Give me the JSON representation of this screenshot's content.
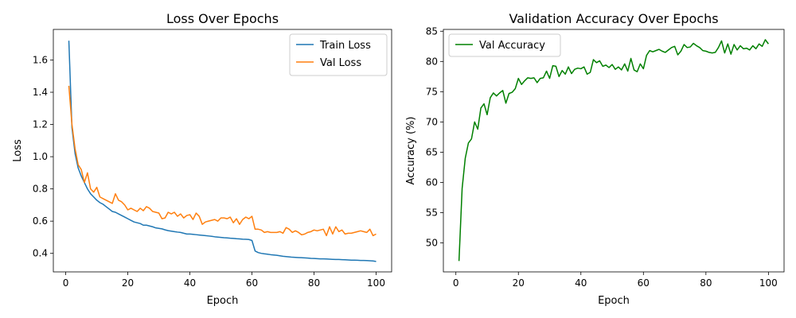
{
  "chart_data": [
    {
      "type": "line",
      "title": "Loss Over Epochs",
      "xlabel": "Epoch",
      "ylabel": "Loss",
      "xlim": [
        -4,
        105
      ],
      "ylim": [
        0.285,
        1.79
      ],
      "xticks": [
        0,
        20,
        40,
        60,
        80,
        100
      ],
      "yticks": [
        0.4,
        0.6,
        0.8,
        1.0,
        1.2,
        1.4,
        1.6
      ],
      "ytick_labels": [
        "0.4",
        "0.6",
        "0.8",
        "1.0",
        "1.2",
        "1.4",
        "1.6"
      ],
      "legend_position": "top-right",
      "grid": false,
      "series": [
        {
          "name": "Train Loss",
          "color": "#1f77b4",
          "x": [
            1,
            2,
            3,
            4,
            5,
            6,
            7,
            8,
            9,
            10,
            11,
            12,
            13,
            14,
            15,
            16,
            17,
            18,
            19,
            20,
            21,
            22,
            23,
            24,
            25,
            26,
            27,
            28,
            29,
            30,
            31,
            32,
            33,
            34,
            35,
            36,
            37,
            38,
            39,
            40,
            41,
            42,
            43,
            44,
            45,
            46,
            47,
            48,
            49,
            50,
            51,
            52,
            53,
            54,
            55,
            56,
            57,
            58,
            59,
            60,
            61,
            62,
            63,
            64,
            65,
            66,
            67,
            68,
            69,
            70,
            71,
            72,
            73,
            74,
            75,
            76,
            77,
            78,
            79,
            80,
            81,
            82,
            83,
            84,
            85,
            86,
            87,
            88,
            89,
            90,
            91,
            92,
            93,
            94,
            95,
            96,
            97,
            98,
            99,
            100
          ],
          "values": [
            1.72,
            1.18,
            1.02,
            0.93,
            0.88,
            0.84,
            0.8,
            0.77,
            0.75,
            0.73,
            0.715,
            0.705,
            0.69,
            0.675,
            0.66,
            0.655,
            0.645,
            0.635,
            0.625,
            0.615,
            0.605,
            0.595,
            0.59,
            0.585,
            0.575,
            0.575,
            0.57,
            0.565,
            0.558,
            0.555,
            0.552,
            0.546,
            0.541,
            0.538,
            0.535,
            0.532,
            0.53,
            0.525,
            0.52,
            0.52,
            0.518,
            0.516,
            0.514,
            0.512,
            0.51,
            0.508,
            0.506,
            0.503,
            0.501,
            0.499,
            0.497,
            0.496,
            0.494,
            0.493,
            0.491,
            0.49,
            0.488,
            0.487,
            0.486,
            0.48,
            0.415,
            0.405,
            0.4,
            0.397,
            0.395,
            0.392,
            0.39,
            0.388,
            0.385,
            0.382,
            0.38,
            0.378,
            0.376,
            0.375,
            0.374,
            0.373,
            0.372,
            0.371,
            0.369,
            0.368,
            0.367,
            0.366,
            0.366,
            0.365,
            0.364,
            0.363,
            0.362,
            0.362,
            0.361,
            0.36,
            0.359,
            0.358,
            0.358,
            0.357,
            0.356,
            0.356,
            0.355,
            0.354,
            0.353,
            0.35
          ]
        },
        {
          "name": "Val Loss",
          "color": "#ff7f0e",
          "x": [
            1,
            2,
            3,
            4,
            5,
            6,
            7,
            8,
            9,
            10,
            11,
            12,
            13,
            14,
            15,
            16,
            17,
            18,
            19,
            20,
            21,
            22,
            23,
            24,
            25,
            26,
            27,
            28,
            29,
            30,
            31,
            32,
            33,
            34,
            35,
            36,
            37,
            38,
            39,
            40,
            41,
            42,
            43,
            44,
            45,
            46,
            47,
            48,
            49,
            50,
            51,
            52,
            53,
            54,
            55,
            56,
            57,
            58,
            59,
            60,
            61,
            62,
            63,
            64,
            65,
            66,
            67,
            68,
            69,
            70,
            71,
            72,
            73,
            74,
            75,
            76,
            77,
            78,
            79,
            80,
            81,
            82,
            83,
            84,
            85,
            86,
            87,
            88,
            89,
            90,
            91,
            92,
            93,
            94,
            95,
            96,
            97,
            98,
            99,
            100
          ],
          "values": [
            1.44,
            1.2,
            1.05,
            0.95,
            0.92,
            0.84,
            0.9,
            0.8,
            0.78,
            0.81,
            0.75,
            0.74,
            0.73,
            0.72,
            0.71,
            0.77,
            0.73,
            0.72,
            0.7,
            0.67,
            0.68,
            0.67,
            0.66,
            0.68,
            0.665,
            0.69,
            0.68,
            0.66,
            0.655,
            0.65,
            0.615,
            0.62,
            0.655,
            0.645,
            0.655,
            0.63,
            0.645,
            0.62,
            0.635,
            0.64,
            0.61,
            0.65,
            0.63,
            0.58,
            0.595,
            0.6,
            0.605,
            0.61,
            0.6,
            0.62,
            0.62,
            0.615,
            0.625,
            0.59,
            0.615,
            0.58,
            0.61,
            0.625,
            0.615,
            0.63,
            0.55,
            0.55,
            0.545,
            0.53,
            0.535,
            0.53,
            0.53,
            0.53,
            0.535,
            0.525,
            0.56,
            0.55,
            0.53,
            0.54,
            0.53,
            0.515,
            0.52,
            0.53,
            0.535,
            0.545,
            0.54,
            0.545,
            0.55,
            0.51,
            0.565,
            0.52,
            0.565,
            0.535,
            0.545,
            0.52,
            0.525,
            0.525,
            0.53,
            0.535,
            0.54,
            0.535,
            0.53,
            0.55,
            0.51,
            0.52
          ]
        }
      ]
    },
    {
      "type": "line",
      "title": "Validation Accuracy Over Epochs",
      "xlabel": "Epoch",
      "ylabel": "Accuracy (%)",
      "xlim": [
        -4,
        105
      ],
      "ylim": [
        45.2,
        85.3
      ],
      "xticks": [
        0,
        20,
        40,
        60,
        80,
        100
      ],
      "yticks": [
        50,
        55,
        60,
        65,
        70,
        75,
        80,
        85
      ],
      "ytick_labels": [
        "50",
        "55",
        "60",
        "65",
        "70",
        "75",
        "80",
        "85"
      ],
      "legend_position": "top-left",
      "grid": false,
      "series": [
        {
          "name": "Val Accuracy",
          "color": "#008000",
          "x": [
            1,
            2,
            3,
            4,
            5,
            6,
            7,
            8,
            9,
            10,
            11,
            12,
            13,
            14,
            15,
            16,
            17,
            18,
            19,
            20,
            21,
            22,
            23,
            24,
            25,
            26,
            27,
            28,
            29,
            30,
            31,
            32,
            33,
            34,
            35,
            36,
            37,
            38,
            39,
            40,
            41,
            42,
            43,
            44,
            45,
            46,
            47,
            48,
            49,
            50,
            51,
            52,
            53,
            54,
            55,
            56,
            57,
            58,
            59,
            60,
            61,
            62,
            63,
            64,
            65,
            66,
            67,
            68,
            69,
            70,
            71,
            72,
            73,
            74,
            75,
            76,
            77,
            78,
            79,
            80,
            81,
            82,
            83,
            84,
            85,
            86,
            87,
            88,
            89,
            90,
            91,
            92,
            93,
            94,
            95,
            96,
            97,
            98,
            99,
            100
          ],
          "values": [
            47.0,
            59.0,
            64.0,
            66.5,
            67.2,
            70.0,
            68.8,
            72.3,
            73.0,
            71.2,
            74.0,
            74.8,
            74.3,
            74.8,
            75.2,
            73.1,
            74.7,
            74.9,
            75.5,
            77.2,
            76.2,
            76.8,
            77.3,
            77.2,
            77.3,
            76.5,
            77.2,
            77.3,
            78.4,
            77.2,
            79.3,
            79.2,
            77.5,
            78.5,
            77.9,
            79.1,
            78.0,
            78.7,
            78.9,
            78.8,
            79.1,
            77.9,
            78.2,
            80.3,
            79.8,
            80.1,
            79.2,
            79.4,
            79.0,
            79.5,
            78.7,
            79.1,
            78.6,
            79.6,
            78.4,
            80.5,
            78.6,
            78.3,
            79.6,
            78.8,
            81.0,
            81.8,
            81.6,
            81.8,
            82.0,
            81.7,
            81.5,
            81.9,
            82.3,
            82.5,
            81.1,
            81.7,
            82.8,
            82.3,
            82.4,
            83.0,
            82.6,
            82.3,
            81.8,
            81.7,
            81.5,
            81.4,
            81.5,
            82.3,
            83.4,
            81.4,
            82.9,
            81.2,
            82.8,
            81.9,
            82.6,
            82.1,
            82.2,
            81.9,
            82.6,
            82.1,
            82.9,
            82.5,
            83.6,
            82.9
          ]
        }
      ]
    }
  ]
}
